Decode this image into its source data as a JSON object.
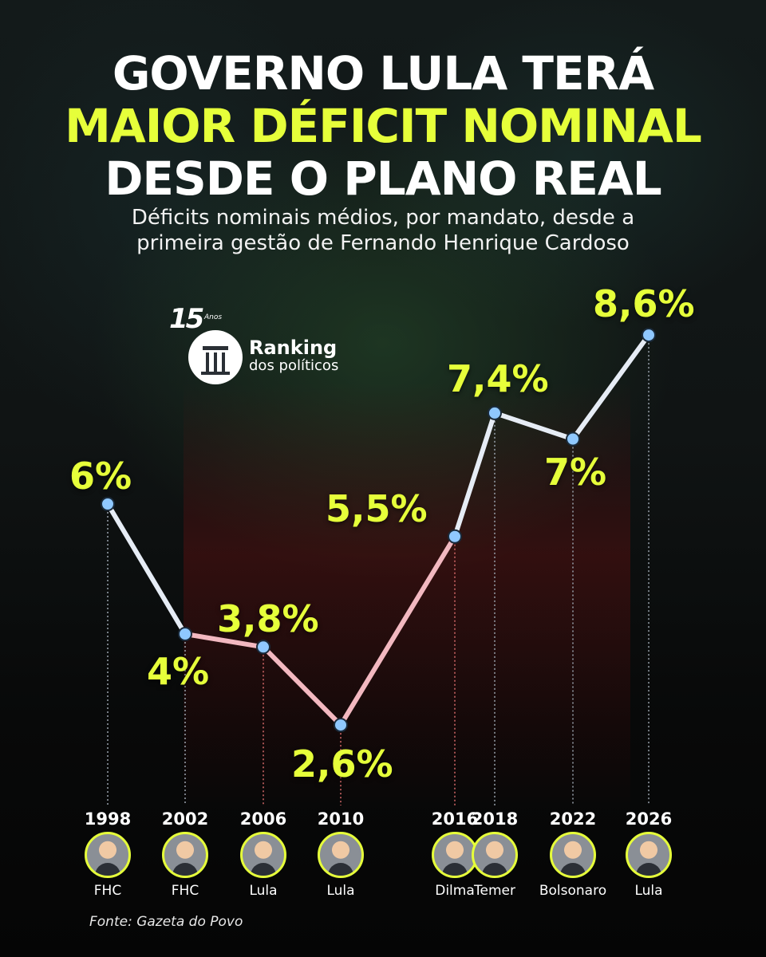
{
  "title": {
    "line1": "GOVERNO LULA TERÁ",
    "line2": "MAIOR DÉFICIT NOMINAL",
    "line3": "DESDE O PLANO REAL",
    "accent": "#e6ff3a"
  },
  "subtitle": {
    "line1": "Déficits  nominais médios, por mandato, desde a",
    "line2": "primeira gestão de Fernando Henrique Cardoso"
  },
  "logo": {
    "number": "15",
    "anos": "Anos",
    "name": "Ranking",
    "sub": "dos políticos"
  },
  "chart_data": {
    "type": "line",
    "x": [
      "1998",
      "2002",
      "2006",
      "2010",
      "2016",
      "2018",
      "2022",
      "2026"
    ],
    "values": [
      6.0,
      4.0,
      3.8,
      2.6,
      5.5,
      7.4,
      7.0,
      8.6
    ],
    "value_labels": [
      "6%",
      "4%",
      "3,8%",
      "2,6%",
      "5,5%",
      "7,4%",
      "7%",
      "8,6%"
    ],
    "president": [
      "FHC",
      "FHC",
      "Lula",
      "Lula",
      "Dilma",
      "Temer",
      "Bolsonaro",
      "Lula"
    ],
    "unit": "%",
    "line_color": "#e6ecf5",
    "point_color": "#8fc8ff",
    "label_color": "#e6ff3a"
  },
  "source": "Fonte: Gazeta do Povo"
}
